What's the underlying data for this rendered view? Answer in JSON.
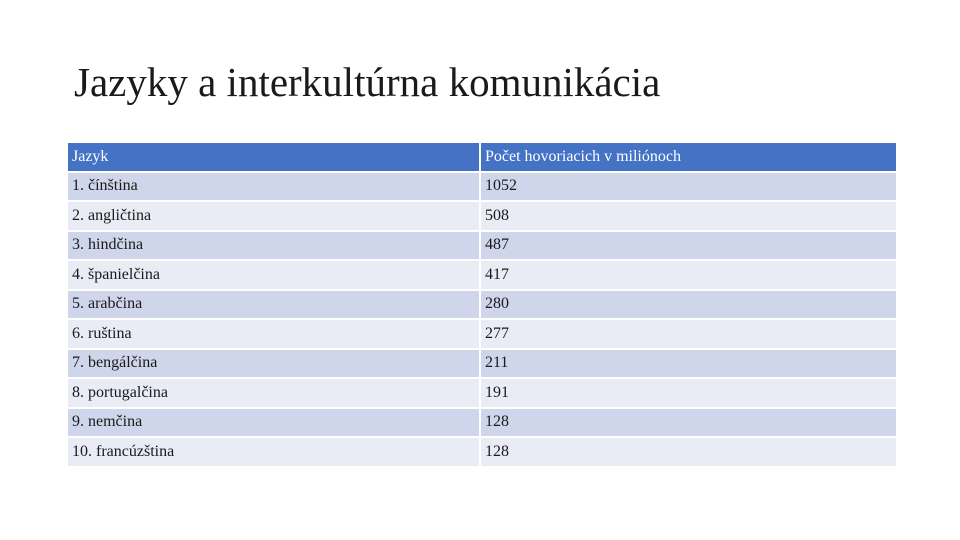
{
  "slide": {
    "title": "Jazyky a interkultúrna komunikácia"
  },
  "table": {
    "header": {
      "language": "Jazyk",
      "speakers": "Počet hovoriacich v miliónoch"
    },
    "rows": [
      {
        "language": "1. čínština",
        "speakers": "1052"
      },
      {
        "language": "2. angličtina",
        "speakers": "508"
      },
      {
        "language": "3. hindčina",
        "speakers": "487"
      },
      {
        "language": "4. španielčina",
        "speakers": "417"
      },
      {
        "language": "5. arabčina",
        "speakers": "280"
      },
      {
        "language": "6. ruština",
        "speakers": "277"
      },
      {
        "language": "7. bengálčina",
        "speakers": "211"
      },
      {
        "language": "8. portugalčina",
        "speakers": "191"
      },
      {
        "language": "9. nemčina",
        "speakers": "128"
      },
      {
        "language": "10. francúzština",
        "speakers": "128"
      }
    ]
  },
  "colors": {
    "header_fill": "#4472c4",
    "header_text": "#ffffff",
    "row_band_dark": "#cfd5ea",
    "row_band_light": "#e9ebf5",
    "text": "#1a1a1a"
  }
}
